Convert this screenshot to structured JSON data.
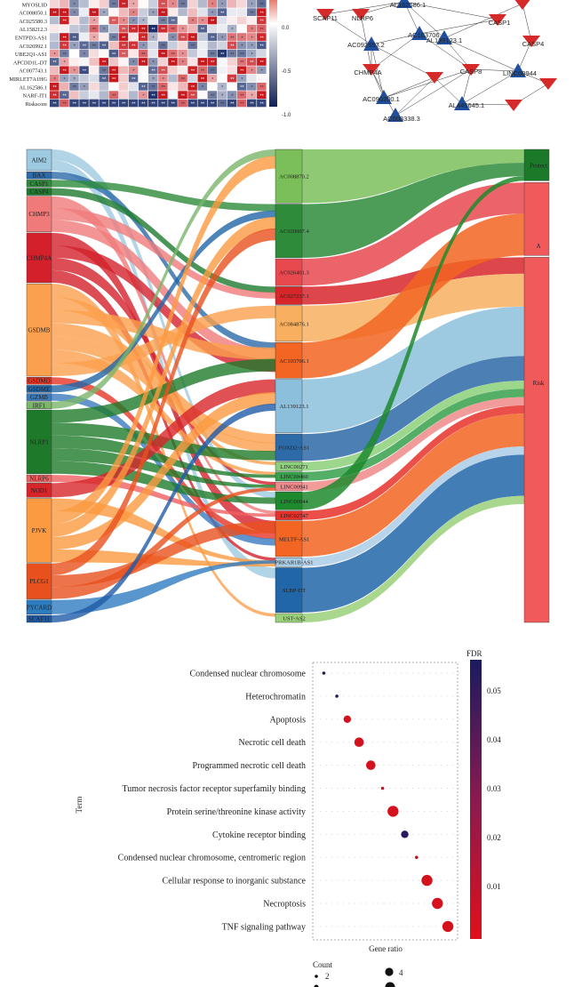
{
  "heatmap": {
    "rows": [
      "MYOSLID",
      "AC008050.1",
      "AC025580.3",
      "AL158212.3",
      "ENTPD3-AS1",
      "AC026992.1",
      "UBE2Q1-AS1",
      "APCDD1L-DT",
      "AC007743.1",
      "MIRLET7A1HG",
      "AL162586.1",
      "NARF-IT1",
      "Riskscore"
    ],
    "colorbar_ticks": [
      "0.0",
      "-0.5",
      "-1.0"
    ],
    "colors": {
      "pos": "#c8141b",
      "neg": "#1c2f6b",
      "mid": "#ffffff"
    }
  },
  "network": {
    "nodes": [
      {
        "label": "AL162586.1",
        "shape": "triangle"
      },
      {
        "label": "AC103706.1",
        "shape": "triangle"
      },
      {
        "label": "AC092653.2",
        "shape": "triangle"
      },
      {
        "label": "AL139123.1",
        "shape": "triangle"
      },
      {
        "label": "LINC00944",
        "shape": "triangle"
      },
      {
        "label": "AC090200.1",
        "shape": "triangle"
      },
      {
        "label": "AL445645.1",
        "shape": "triangle"
      },
      {
        "label": "AC008338.3",
        "shape": "triangle"
      },
      {
        "label": "SCAF11",
        "shape": "vee"
      },
      {
        "label": "NLRP6",
        "shape": "vee"
      },
      {
        "label": "CHMP4A",
        "shape": "vee"
      },
      {
        "label": "CASP8",
        "shape": "vee"
      },
      {
        "label": "CASP4",
        "shape": "vee"
      },
      {
        "label": "",
        "shape": "vee"
      },
      {
        "label": "",
        "shape": "vee"
      },
      {
        "label": "",
        "shape": "vee"
      },
      {
        "label": "",
        "shape": "vee"
      },
      {
        "label": "CASP1",
        "shape": "vee"
      }
    ],
    "colors": {
      "lnc": "#1f4e9a",
      "gene": "#d42a2a"
    }
  },
  "sankey": {
    "left": [
      {
        "label": "AIM2",
        "color": "#9ecae1",
        "weight": 3
      },
      {
        "label": "BAX",
        "color": "#2c6aa8",
        "weight": 1
      },
      {
        "label": "CASP1",
        "color": "#2e8b3a",
        "weight": 1
      },
      {
        "label": "CASP4",
        "color": "#1e7b2e",
        "weight": 1
      },
      {
        "label": "CHMP3",
        "color": "#f07a7a",
        "weight": 5
      },
      {
        "label": "CHMP4A",
        "color": "#d3202a",
        "weight": 7
      },
      {
        "label": "GSDMB",
        "color": "#fba04e",
        "weight": 13
      },
      {
        "label": "GSDMD",
        "color": "#e63524",
        "weight": 1
      },
      {
        "label": "GSDME",
        "color": "#2066a8",
        "weight": 1
      },
      {
        "label": "GZMB",
        "color": "#3a7bbf",
        "weight": 1
      },
      {
        "label": "IRF1",
        "color": "#7ab56a",
        "weight": 1
      },
      {
        "label": "NLRP1",
        "color": "#1e7a2a",
        "weight": 9
      },
      {
        "label": "NLRP6",
        "color": "#f06060",
        "weight": 1
      },
      {
        "label": "NOD1",
        "color": "#d7262a",
        "weight": 2
      },
      {
        "label": "PJVK",
        "color": "#fb9a40",
        "weight": 9
      },
      {
        "label": "PLCG1",
        "color": "#e8501e",
        "weight": 5
      },
      {
        "label": "PYCARD",
        "color": "#2e7cc0",
        "weight": 2
      },
      {
        "label": "SCAF11",
        "color": "#1f5ba8",
        "weight": 1
      }
    ],
    "middle": [
      {
        "label": "AC008870.2",
        "color": "#7bbf5a",
        "weight": 6
      },
      {
        "label": "AC020907.4",
        "color": "#2e8b3a",
        "weight": 6
      },
      {
        "label": "AC026401.3",
        "color": "#e8494f",
        "weight": 3
      },
      {
        "label": "AC027237.1",
        "color": "#d7262a",
        "weight": 2
      },
      {
        "label": "AC084876.1",
        "color": "#f8b060",
        "weight": 4
      },
      {
        "label": "AC103706.1",
        "color": "#f26522",
        "weight": 4
      },
      {
        "label": "AL139123.1",
        "color": "#8cbfdc",
        "weight": 6
      },
      {
        "label": "FOXD2-AS1",
        "color": "#2d6aa8",
        "weight": 3
      },
      {
        "label": "LINC00271",
        "color": "#8cd07a",
        "weight": 1
      },
      {
        "label": "LINC00460",
        "color": "#36a04a",
        "weight": 1
      },
      {
        "label": "LINC00941",
        "color": "#f08a8a",
        "weight": 1
      },
      {
        "label": "LINC00944",
        "color": "#1e8a2e",
        "weight": 2
      },
      {
        "label": "LINC02747",
        "color": "#e8302a",
        "weight": 1
      },
      {
        "label": "MELTF-AS1",
        "color": "#f26522",
        "weight": 4
      },
      {
        "label": "PRKAR1B-AS1",
        "color": "#aacde8",
        "weight": 1
      },
      {
        "label": "SLBP-DT",
        "color": "#2166a8",
        "weight": 5
      },
      {
        "label": "UST-AS2",
        "color": "#9bd07a",
        "weight": 1
      }
    ],
    "right": [
      {
        "label": "Protect",
        "color": "#1b7a2a",
        "weight": 3
      },
      {
        "label": "A",
        "color": "#f05a5a",
        "weight": 7
      },
      {
        "label": "Risk",
        "color": "#f05a5a",
        "weight": 35
      }
    ]
  },
  "dotplot": {
    "type": "scatter",
    "xlabel": "Gene ratio",
    "ylabel": "Term",
    "legend_fdr_title": "FDR",
    "fdr_ticks": [
      "0.05",
      "0.04",
      "0.03",
      "0.02",
      "0.01"
    ],
    "count_title": "Count",
    "count_ticks": [
      "2",
      "4"
    ],
    "terms": [
      {
        "label": "Condensed nuclear chromosome",
        "x": 0.97,
        "fdr": 0.058,
        "count": 1
      },
      {
        "label": "Heterochromatin",
        "x": 0.87,
        "fdr": 0.055,
        "count": 1
      },
      {
        "label": "Apoptosis",
        "x": 0.79,
        "fdr": 0.003,
        "count": 4
      },
      {
        "label": "Necrotic cell death",
        "x": 0.7,
        "fdr": 0.003,
        "count": 5
      },
      {
        "label": "Programmed necrotic cell death",
        "x": 0.61,
        "fdr": 0.003,
        "count": 5
      },
      {
        "label": "Tumor necrosis factor receptor superfamily binding",
        "x": 0.52,
        "fdr": 0.007,
        "count": 1
      },
      {
        "label": "Protein serine/threonine kinase activity",
        "x": 0.44,
        "fdr": 0.003,
        "count": 6
      },
      {
        "label": "Cytokine receptor binding",
        "x": 0.35,
        "fdr": 0.055,
        "count": 4
      },
      {
        "label": "Condensed nuclear chromosome, centromeric region",
        "x": 0.26,
        "fdr": 0.007,
        "count": 1
      },
      {
        "label": "Cellular response to inorganic substance",
        "x": 0.18,
        "fdr": 0.003,
        "count": 6
      },
      {
        "label": "Necroptosis",
        "x": 0.1,
        "fdr": 0.003,
        "count": 6
      },
      {
        "label": "TNF signaling pathway",
        "x": 0.02,
        "fdr": 0.003,
        "count": 6
      }
    ],
    "colors": {
      "low": "#e0101a",
      "high": "#1a1a60"
    }
  }
}
